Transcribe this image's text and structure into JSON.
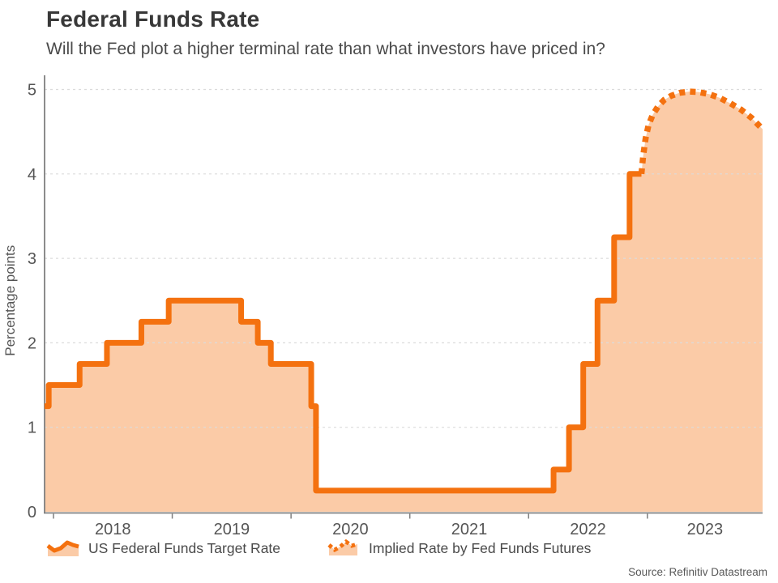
{
  "source": "Source: Refinitiv Datastream",
  "chart_data": {
    "type": "area",
    "title": "Federal Funds Rate",
    "subtitle": "Will the Fed plot a higher terminal rate than what investors have priced in?",
    "xlabel": "",
    "ylabel": "Percentage points",
    "ylim": [
      0,
      5.17
    ],
    "x_domain": [
      2017.925,
      2023.97
    ],
    "y_ticks": [
      0,
      1,
      2,
      3,
      4,
      5
    ],
    "x_tick_years": [
      2018,
      2019,
      2020,
      2021,
      2022,
      2023
    ],
    "grid": "dashed horizontal",
    "legend_position": "bottom",
    "legend": [
      {
        "label": "US Federal Funds Target Rate",
        "style": "solid"
      },
      {
        "label": "Implied Rate by Fed Funds Futures",
        "style": "dotted"
      }
    ],
    "series": [
      {
        "name": "US Federal Funds Target Rate",
        "draw": "step-after",
        "line": "solid",
        "points": [
          [
            2017.925,
            1.25
          ],
          [
            2017.96,
            1.5
          ],
          [
            2018.22,
            1.75
          ],
          [
            2018.45,
            2.0
          ],
          [
            2018.74,
            2.25
          ],
          [
            2018.97,
            2.5
          ],
          [
            2019.58,
            2.25
          ],
          [
            2019.72,
            2.0
          ],
          [
            2019.83,
            1.75
          ],
          [
            2020.17,
            1.25
          ],
          [
            2020.21,
            0.25
          ],
          [
            2022.21,
            0.5
          ],
          [
            2022.34,
            1.0
          ],
          [
            2022.46,
            1.75
          ],
          [
            2022.58,
            2.5
          ],
          [
            2022.72,
            3.25
          ],
          [
            2022.85,
            4.0
          ],
          [
            2022.95,
            4.0
          ]
        ]
      },
      {
        "name": "Implied Rate by Fed Funds Futures",
        "draw": "line",
        "line": "dotted",
        "points": [
          [
            2022.95,
            4.0
          ],
          [
            2022.965,
            4.22
          ],
          [
            2022.985,
            4.42
          ],
          [
            2023.01,
            4.58
          ],
          [
            2023.045,
            4.7
          ],
          [
            2023.09,
            4.8
          ],
          [
            2023.14,
            4.875
          ],
          [
            2023.2,
            4.925
          ],
          [
            2023.27,
            4.96
          ],
          [
            2023.35,
            4.975
          ],
          [
            2023.43,
            4.97
          ],
          [
            2023.52,
            4.945
          ],
          [
            2023.61,
            4.9
          ],
          [
            2023.7,
            4.835
          ],
          [
            2023.79,
            4.76
          ],
          [
            2023.88,
            4.66
          ],
          [
            2023.97,
            4.53
          ]
        ]
      }
    ],
    "colors": {
      "line": "#F4710F",
      "fill": "rgba(244,113,15,0.37)",
      "grid": "#DBDBDB",
      "axis": "#7F7F7F",
      "tick_text": "#555555",
      "title_text": "#383838",
      "subtitle_text": "#4A4A4A",
      "source_text": "#595959"
    }
  }
}
